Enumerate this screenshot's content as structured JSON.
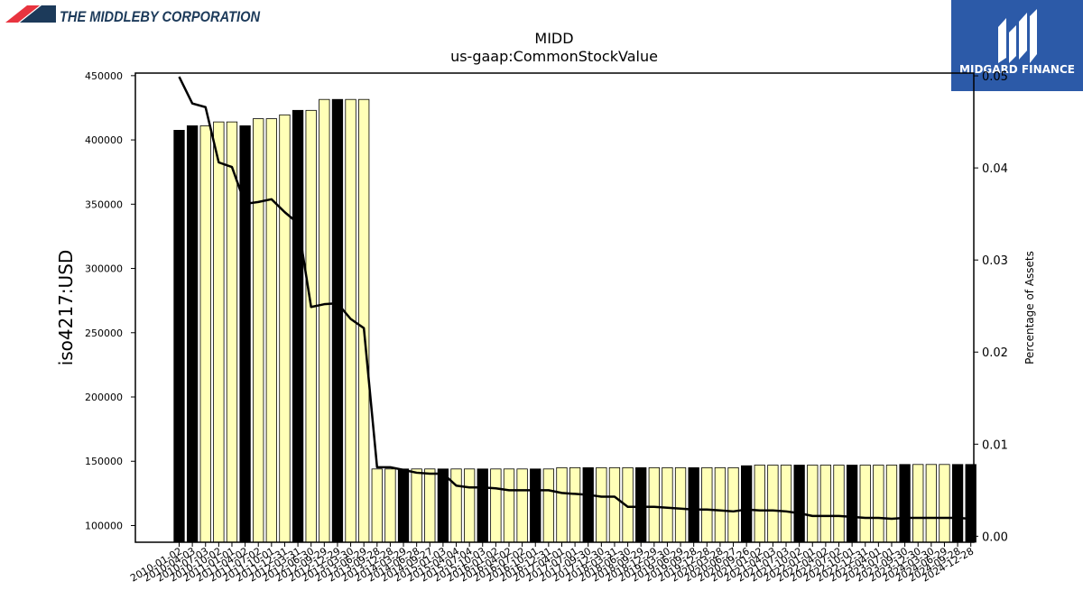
{
  "header": {
    "company_name": "THE MIDDLEBY CORPORATION"
  },
  "brand": {
    "name": "MIDGARD FINANCE",
    "color": "#2c5aa8"
  },
  "chart_data": {
    "type": "bar",
    "title": "MIDD",
    "subtitle": "us-gaap:CommonStockValue",
    "ylabel": "iso4217:USD",
    "y2label": "Percentage of Assets",
    "ylim": [
      87000,
      452000
    ],
    "y2lim": [
      -0.00065,
      0.0503
    ],
    "yticks": [
      100000,
      150000,
      200000,
      250000,
      300000,
      350000,
      400000,
      450000
    ],
    "y2ticks": [
      0.0,
      0.01,
      0.02,
      0.03,
      0.04,
      0.05
    ],
    "y2tick_labels": [
      "0.00",
      "0.01",
      "0.02",
      "0.03",
      "0.04",
      "0.05"
    ],
    "colors": {
      "annual": "#000000",
      "quarterly": "#ffffb7",
      "line": "#000000"
    },
    "categories": [
      "2010-01-02",
      "2010-04-03",
      "2010-07-03",
      "2010-10-02",
      "2011-01-01",
      "2011-04-02",
      "2011-07-02",
      "2011-10-01",
      "2011-12-31",
      "2012-03-31",
      "2012-06-30",
      "2012-09-29",
      "2012-12-29",
      "2013-03-30",
      "2013-06-29",
      "2013-09-28",
      "2013-12-28",
      "2014-03-29",
      "2014-06-28",
      "2014-09-27",
      "2015-01-03",
      "2015-04-04",
      "2015-07-04",
      "2015-10-03",
      "2016-01-02",
      "2016-04-02",
      "2016-07-02",
      "2016-10-01",
      "2016-12-31",
      "2017-04-01",
      "2017-07-01",
      "2017-09-30",
      "2017-12-30",
      "2018-03-31",
      "2018-06-30",
      "2018-09-29",
      "2018-12-29",
      "2019-03-30",
      "2019-06-29",
      "2019-09-28",
      "2019-12-28",
      "2020-03-28",
      "2020-06-27",
      "2020-09-26",
      "2021-01-02",
      "2021-04-03",
      "2021-07-03",
      "2021-10-02",
      "2022-01-01",
      "2022-04-02",
      "2022-07-02",
      "2022-10-01",
      "2022-12-31",
      "2023-04-01",
      "2023-07-01",
      "2023-09-30",
      "2023-12-30",
      "2024-03-30",
      "2024-06-29",
      "2024-09-28",
      "2024-12-28"
    ],
    "tick_labels": [
      "2010-01-02",
      "2010-04-03",
      "2010-07-03",
      "2010-10-02",
      "2011-01-01",
      "2011-04-02",
      "2011-07-02",
      "2011-10-01",
      "2011-12-31",
      "2012-03-31",
      "2012-06-30",
      "2012-09-29",
      "2012-12-29",
      "2013-03-30",
      "2013-06-29",
      "2013-09-28",
      "2013-12-28",
      "2014-03-29",
      "2014-06-28",
      "2014-09-27",
      "2015-01-03",
      "2015-04-04",
      "2015-07-04",
      "2015-10-03",
      "2016-01-02",
      "2016-04-02",
      "2016-07-02",
      "2016-10-01",
      "2016-12-31",
      "2017-04-01",
      "2017-07-01",
      "2017-09-30",
      "2017-12-30",
      "2018-03-31",
      "2018-06-30",
      "2018-09-29",
      "2018-12-29",
      "2019-03-30",
      "2019-06-29",
      "2019-09-28",
      "2019-12-28",
      "2020-03-28",
      "2020-06-27",
      "2020-09-26",
      "2021-01-02",
      "2021-04-03",
      "2021-07-03",
      "2021-10-02",
      "2022-01-01",
      "2022-04-02",
      "2022-07-02",
      "2022-10-01",
      "2022-12-31",
      "2023-04-01",
      "2023-07-01",
      "2023-09-30",
      "2023-12-30",
      "2024-03-30",
      "2024-06-29",
      "2024-09-28",
      "2024-12-28"
    ],
    "values": [
      407500,
      411000,
      411000,
      414000,
      414000,
      411000,
      416500,
      416500,
      419500,
      423000,
      423000,
      431500,
      431500,
      431500,
      431500,
      144000,
      144000,
      144000,
      144000,
      144000,
      144000,
      144000,
      144000,
      144000,
      144000,
      144000,
      144000,
      144000,
      144000,
      145000,
      145000,
      145000,
      145000,
      145000,
      145000,
      145000,
      145000,
      145000,
      145000,
      145000,
      145000,
      145000,
      145000,
      146500,
      147000,
      147000,
      147000,
      147000,
      147000,
      147000,
      147000,
      147000,
      147000,
      147000,
      147000,
      147500,
      147500,
      147500,
      147500,
      147500,
      147500
    ],
    "annual": [
      true,
      true,
      false,
      false,
      false,
      true,
      false,
      false,
      false,
      true,
      false,
      false,
      true,
      false,
      false,
      false,
      false,
      true,
      false,
      false,
      true,
      false,
      false,
      true,
      false,
      false,
      false,
      true,
      false,
      false,
      false,
      true,
      false,
      false,
      false,
      true,
      false,
      false,
      false,
      true,
      false,
      false,
      false,
      true,
      false,
      false,
      false,
      true,
      false,
      false,
      false,
      true,
      false,
      false,
      false,
      true,
      false,
      false,
      false,
      true,
      true
    ],
    "pct_assets": [
      0.0499,
      0.047,
      0.0466,
      0.0406,
      0.0401,
      0.0361,
      0.0363,
      0.0366,
      0.0352,
      0.034,
      0.0249,
      0.0252,
      0.0253,
      0.0236,
      0.0226,
      0.0075,
      0.0075,
      0.0072,
      0.0069,
      0.0068,
      0.0068,
      0.0055,
      0.0053,
      0.0053,
      0.0052,
      0.005,
      0.005,
      0.005,
      0.005,
      0.0047,
      0.0046,
      0.0045,
      0.0043,
      0.0043,
      0.0032,
      0.0032,
      0.0032,
      0.0031,
      0.003,
      0.0029,
      0.0029,
      0.0028,
      0.0027,
      0.0029,
      0.0028,
      0.0028,
      0.0027,
      0.0025,
      0.0022,
      0.0022,
      0.0022,
      0.0021,
      0.002,
      0.002,
      0.0019,
      0.002,
      0.002,
      0.002,
      0.002,
      0.002,
      0.0019
    ]
  }
}
